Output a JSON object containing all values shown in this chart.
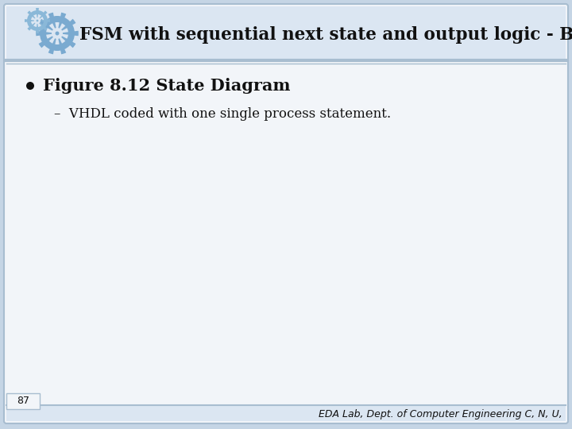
{
  "title": "FSM with sequential next state and output logic - Blackjack",
  "bullet_main": "Figure 8.12 State Diagram",
  "bullet_sub": "VHDL coded with one single process statement.",
  "page_number": "87",
  "footer": "EDA Lab, Dept. of Computer Engineering C, N, U,",
  "bg_outer": "#c5d5e5",
  "bg_inner": "#f2f5f9",
  "bg_header": "#dbe6f2",
  "sep_color": "#a8bdd0",
  "title_color": "#111111",
  "bullet_color": "#111111",
  "sub_bullet_color": "#111111",
  "footer_color": "#111111",
  "page_num_color": "#111111",
  "gear_big_color": "#7aaad0",
  "gear_small_color": "#8ab8d8",
  "gear_bg": "#dbe6f2"
}
